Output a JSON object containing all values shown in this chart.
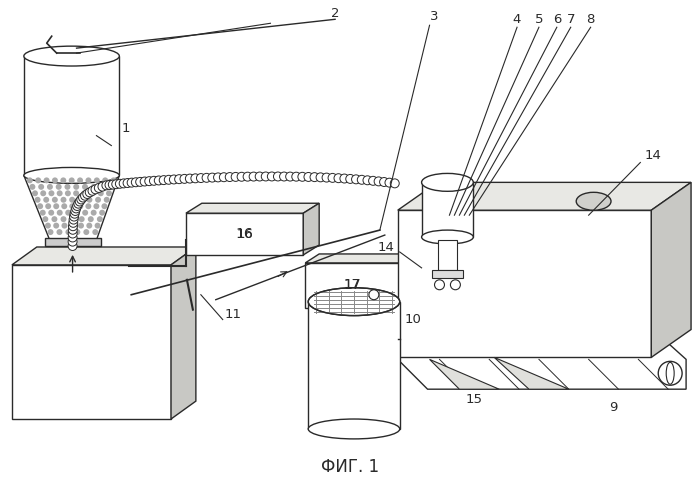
{
  "title": "ФИГ. 1",
  "bg_color": "#f5f5f0",
  "line_color": "#2a2a2a",
  "fill_light": "#f0f0ec",
  "fill_gray": "#c8c8c4",
  "fill_dark": "#b0b0aa"
}
